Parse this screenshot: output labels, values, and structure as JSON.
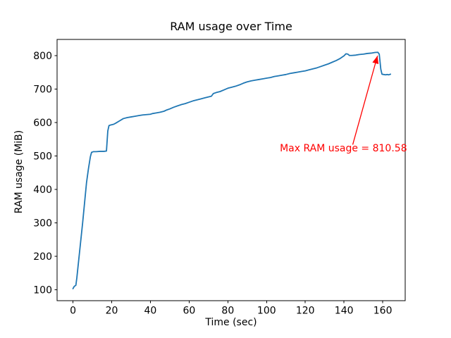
{
  "chart_data": {
    "type": "line",
    "title": "RAM usage over Time",
    "xlabel": "Time (sec)",
    "ylabel": "RAM usage (MiB)",
    "xlim": [
      -8.2,
      171.6
    ],
    "ylim": [
      67,
      849
    ],
    "xticks": [
      0,
      20,
      40,
      60,
      80,
      100,
      120,
      140,
      160
    ],
    "yticks": [
      100,
      200,
      300,
      400,
      500,
      600,
      700,
      800
    ],
    "grid": false,
    "legend_position": "none",
    "axis_color": "#000000",
    "background": "#ffffff",
    "series": [
      {
        "name": "RAM usage",
        "color": "#1f77b4",
        "points": [
          [
            0,
            103
          ],
          [
            0.7,
            110
          ],
          [
            1.5,
            113
          ],
          [
            2,
            135
          ],
          [
            3,
            190
          ],
          [
            4,
            245
          ],
          [
            5,
            300
          ],
          [
            6,
            360
          ],
          [
            7,
            420
          ],
          [
            8,
            462
          ],
          [
            9,
            498
          ],
          [
            9.6,
            511
          ],
          [
            10.5,
            513
          ],
          [
            12,
            513
          ],
          [
            14,
            514
          ],
          [
            16,
            514
          ],
          [
            17.3,
            515
          ],
          [
            18,
            575
          ],
          [
            18.6,
            591
          ],
          [
            19.5,
            593
          ],
          [
            21,
            595
          ],
          [
            22,
            598
          ],
          [
            24,
            605
          ],
          [
            26,
            612
          ],
          [
            28,
            615
          ],
          [
            30,
            617
          ],
          [
            32,
            619
          ],
          [
            34,
            621
          ],
          [
            36,
            623
          ],
          [
            38,
            624
          ],
          [
            40,
            625
          ],
          [
            41,
            627
          ],
          [
            43,
            629
          ],
          [
            45,
            631
          ],
          [
            47,
            634
          ],
          [
            48.5,
            638
          ],
          [
            50,
            641
          ],
          [
            52,
            646
          ],
          [
            54,
            650
          ],
          [
            56,
            654
          ],
          [
            58,
            657
          ],
          [
            60,
            661
          ],
          [
            62,
            665
          ],
          [
            64,
            668
          ],
          [
            66,
            671
          ],
          [
            68,
            674
          ],
          [
            70,
            677
          ],
          [
            71.5,
            679
          ],
          [
            72.5,
            687
          ],
          [
            74,
            690
          ],
          [
            76,
            693
          ],
          [
            78,
            698
          ],
          [
            80,
            703
          ],
          [
            82,
            706
          ],
          [
            84,
            709
          ],
          [
            86,
            713
          ],
          [
            88,
            718
          ],
          [
            90,
            722
          ],
          [
            92,
            725
          ],
          [
            94,
            727
          ],
          [
            96,
            729
          ],
          [
            98,
            731
          ],
          [
            100,
            733
          ],
          [
            102,
            735
          ],
          [
            104,
            738
          ],
          [
            106,
            740
          ],
          [
            108,
            742
          ],
          [
            110,
            744
          ],
          [
            112,
            747
          ],
          [
            114,
            749
          ],
          [
            116,
            751
          ],
          [
            118,
            753
          ],
          [
            120,
            755
          ],
          [
            122,
            758
          ],
          [
            124,
            761
          ],
          [
            126,
            764
          ],
          [
            128,
            768
          ],
          [
            130,
            772
          ],
          [
            132,
            776
          ],
          [
            134,
            781
          ],
          [
            136,
            786
          ],
          [
            138,
            792
          ],
          [
            140,
            800
          ],
          [
            141,
            806
          ],
          [
            142,
            805
          ],
          [
            142.8,
            801
          ],
          [
            144,
            801
          ],
          [
            146,
            802
          ],
          [
            148,
            804
          ],
          [
            150,
            805
          ],
          [
            152,
            807
          ],
          [
            154,
            808
          ],
          [
            156,
            810
          ],
          [
            157.5,
            810.58
          ],
          [
            158.2,
            805
          ],
          [
            159,
            760
          ],
          [
            159.6,
            745
          ],
          [
            160.5,
            744
          ],
          [
            161.5,
            743
          ],
          [
            162.3,
            744
          ],
          [
            163,
            743
          ],
          [
            164,
            745
          ]
        ]
      }
    ],
    "annotation": {
      "label": "Max RAM usage = 810.58",
      "value": 810.58,
      "color": "#ff0000",
      "text_xy": [
        139.7,
        522
      ],
      "arrow_from": [
        144.5,
        534
      ],
      "arrow_to": [
        157.3,
        800
      ]
    }
  }
}
